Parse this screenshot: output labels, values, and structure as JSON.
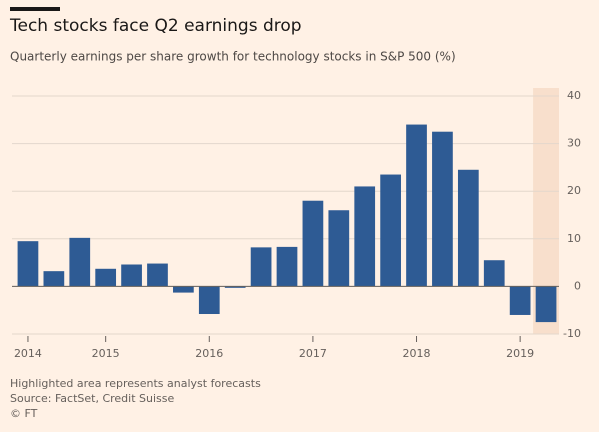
{
  "chart_data": {
    "type": "bar",
    "title": "Tech stocks face Q2 earnings drop",
    "subtitle": "Quarterly earnings per share growth for technology stocks in S&P 500 (%)",
    "categories": [
      "2014",
      null,
      null,
      "2015",
      null,
      null,
      null,
      "2016",
      null,
      null,
      null,
      "2017",
      null,
      null,
      null,
      "2018",
      null,
      null,
      null,
      "2019",
      null
    ],
    "values": [
      9.5,
      3.2,
      10.2,
      3.7,
      4.6,
      4.8,
      -1.3,
      -5.8,
      -0.3,
      8.2,
      8.3,
      18,
      16,
      21,
      23.5,
      34,
      32.5,
      24.5,
      5.5,
      -6,
      -7.5
    ],
    "color": "#2e5b94",
    "ylim": [
      -10,
      40
    ],
    "yticks": [
      -10,
      0,
      10,
      20,
      30,
      40
    ],
    "grid": true,
    "highlight_index": 20,
    "notes": [
      "Highlighted area represents analyst forecasts",
      "Source: FactSet, Credit Suisse",
      "© FT"
    ]
  }
}
